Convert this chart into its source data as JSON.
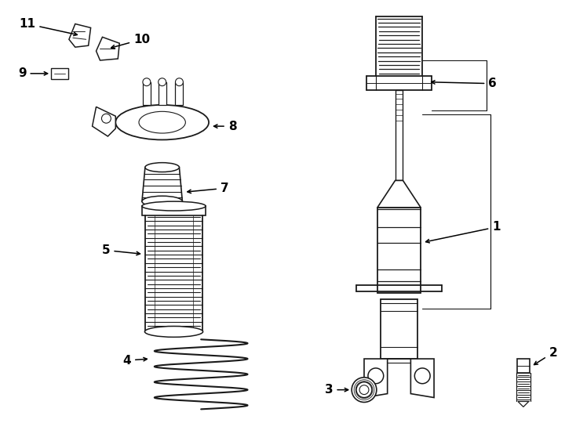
{
  "background_color": "#ffffff",
  "line_color": "#1a1a1a",
  "lw": 1.3,
  "fig_w": 7.34,
  "fig_h": 5.4,
  "dpi": 100,
  "label_fs": 11
}
